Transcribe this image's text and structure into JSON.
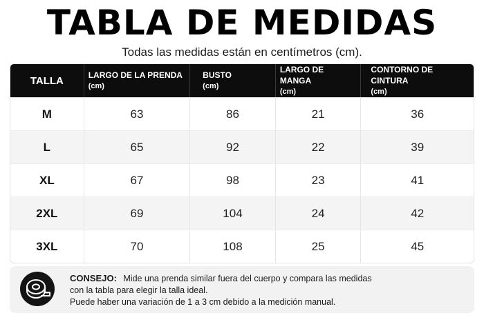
{
  "header": {
    "title": "TABLA DE MEDIDAS",
    "subtitle": "Todas las medidas están en centímetros (cm)."
  },
  "table": {
    "columns": [
      {
        "label": "TALLA",
        "unit": ""
      },
      {
        "label": "LARGO DE LA PRENDA",
        "unit": "(cm)"
      },
      {
        "label": "BUSTO",
        "unit": "(cm)"
      },
      {
        "label": "LARGO DE MANGA",
        "unit": "(cm)"
      },
      {
        "label": "CONTORNO DE CINTURA",
        "unit": "(cm)"
      }
    ],
    "rows": [
      [
        "M",
        "63",
        "86",
        "21",
        "36"
      ],
      [
        "L",
        "65",
        "92",
        "22",
        "39"
      ],
      [
        "XL",
        "67",
        "98",
        "23",
        "41"
      ],
      [
        "2XL",
        "69",
        "104",
        "24",
        "42"
      ],
      [
        "3XL",
        "70",
        "108",
        "25",
        "45"
      ]
    ]
  },
  "tip": {
    "icon": "measuring-tape-icon",
    "label": "CONSEJO:",
    "line1": "Mide una prenda similar fuera del cuerpo y compara las medidas",
    "line2": "con la tabla para elegir la talla ideal.",
    "line3": "Puede haber una variación de 1 a 3 cm debido a la medición manual."
  },
  "colors": {
    "header_bg": "#0d0d0d",
    "row_alt": "#f4f4f4",
    "tip_bg": "#f2f2f2"
  }
}
